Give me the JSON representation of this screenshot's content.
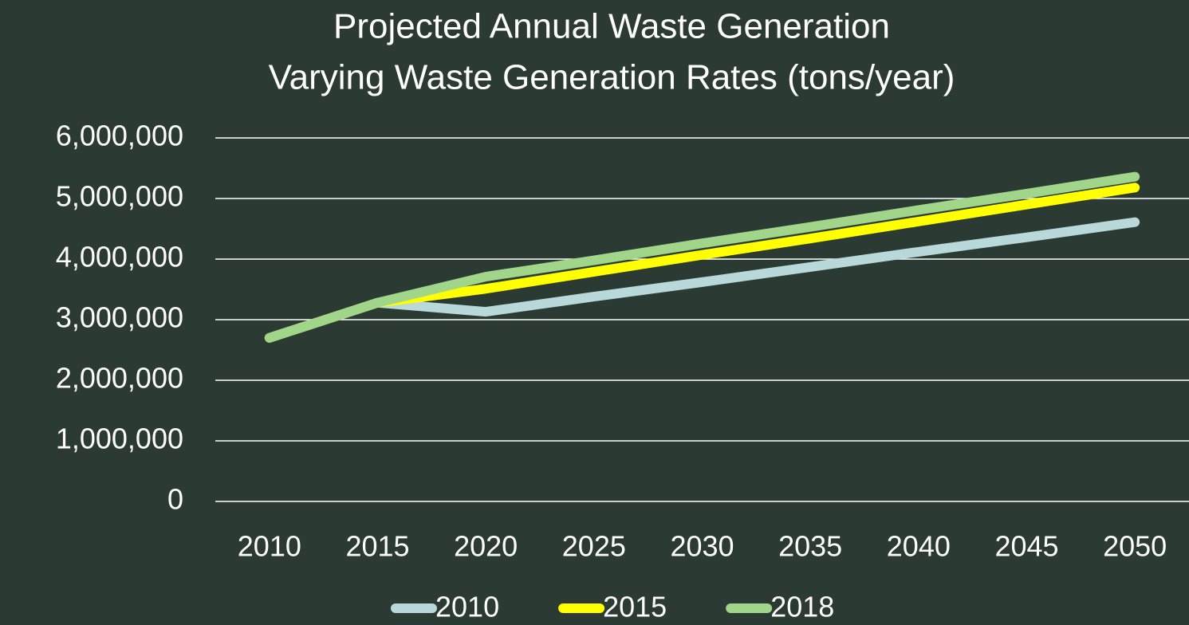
{
  "chart_data": {
    "type": "line",
    "title": "Projected Annual Waste Generation",
    "subtitle": "Varying Waste Generation Rates (tons/year)",
    "categories": [
      "2010",
      "2015",
      "2020",
      "2025",
      "2030",
      "2035",
      "2040",
      "2045",
      "2050"
    ],
    "series": [
      {
        "name": "2010",
        "color": "#b8d8d9",
        "values": [
          2700000,
          3280000,
          3130000,
          3380000,
          3620000,
          3870000,
          4120000,
          4360000,
          4610000
        ]
      },
      {
        "name": "2015",
        "color": "#ffff00",
        "values": [
          2700000,
          3280000,
          3510000,
          3790000,
          4070000,
          4340000,
          4620000,
          4900000,
          5180000
        ]
      },
      {
        "name": "2018",
        "color": "#a0d58a",
        "values": [
          2700000,
          3280000,
          3710000,
          3980000,
          4260000,
          4530000,
          4810000,
          5080000,
          5360000
        ]
      }
    ],
    "ylim": [
      0,
      6000000
    ],
    "yticks": [
      0,
      {
        "value": 1000000,
        "label": "1,000,000"
      },
      {
        "value": 2000000,
        "label": "2,000,000"
      },
      {
        "value": 3000000,
        "label": "3,000,000"
      },
      {
        "value": 4000000,
        "label": "4,000,000"
      },
      {
        "value": 5000000,
        "label": "5,000,000"
      },
      {
        "value": 6000000,
        "label": "6,000,000"
      }
    ],
    "grid": true,
    "legend": "bottom"
  }
}
